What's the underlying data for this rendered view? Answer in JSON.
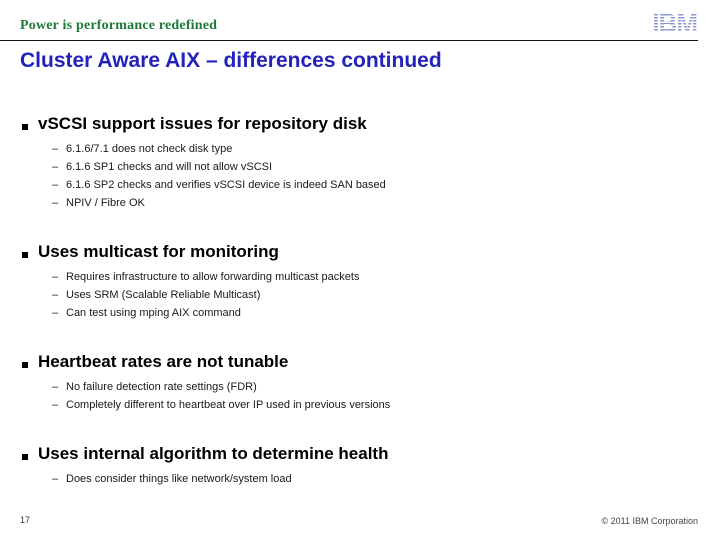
{
  "header": {
    "tagline": "Power is performance redefined",
    "logo_text": "IBM"
  },
  "title": "Cluster Aware AIX – differences continued",
  "bullets": {
    "dash": "–"
  },
  "sections": [
    {
      "heading": "vSCSI support issues for repository disk",
      "items": [
        "6.1.6/7.1 does not check disk type",
        "6.1.6 SP1 checks and will not allow vSCSI",
        "6.1.6 SP2 checks and verifies vSCSI device is indeed SAN based",
        "NPIV / Fibre OK"
      ]
    },
    {
      "heading": "Uses multicast for monitoring",
      "items": [
        "Requires infrastructure to allow forwarding multicast packets",
        "Uses SRM (Scalable Reliable Multicast)",
        "Can test using mping AIX command"
      ]
    },
    {
      "heading": "Heartbeat rates are not tunable",
      "items": [
        "No failure detection rate settings (FDR)",
        "Completely different to heartbeat over IP used in previous versions"
      ]
    },
    {
      "heading": "Uses internal algorithm to determine health",
      "items": [
        "Does consider things like network/system load"
      ]
    }
  ],
  "footer": {
    "page_number": "17",
    "copyright": "© 2011 IBM Corporation"
  },
  "colors": {
    "tagline_green": "#1e7a38",
    "title_blue": "#2323bb",
    "logo_blue": "#8b93d0",
    "body_text": "#000000",
    "footer_text": "#444444"
  }
}
